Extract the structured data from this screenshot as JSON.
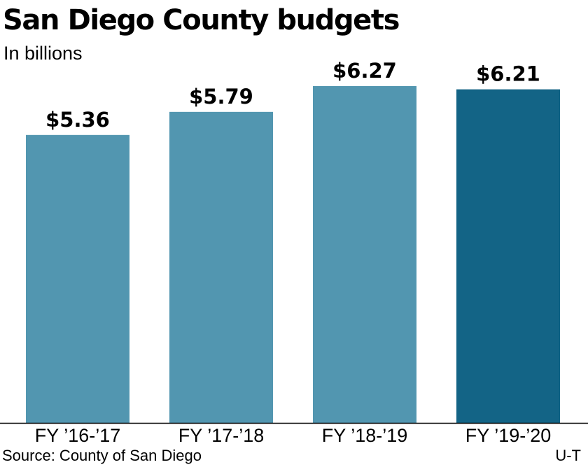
{
  "chart_data": {
    "type": "bar",
    "title": "San Diego County budgets",
    "subtitle": "In billions",
    "categories": [
      "FY ’16-’17",
      "FY ’17-’18",
      "FY ’18-’19",
      "FY ’19-’20"
    ],
    "values": [
      5.36,
      5.79,
      6.27,
      6.21
    ],
    "value_labels": [
      "$5.36",
      "$5.79",
      "$6.27",
      "$6.21"
    ],
    "colors": [
      "#5296B0",
      "#5296B0",
      "#5296B0",
      "#136486"
    ],
    "ylim": [
      0,
      6.27
    ],
    "grid": false,
    "legend": "none"
  },
  "footer": {
    "source": "Source: County of San Diego",
    "credit": "U-T"
  }
}
